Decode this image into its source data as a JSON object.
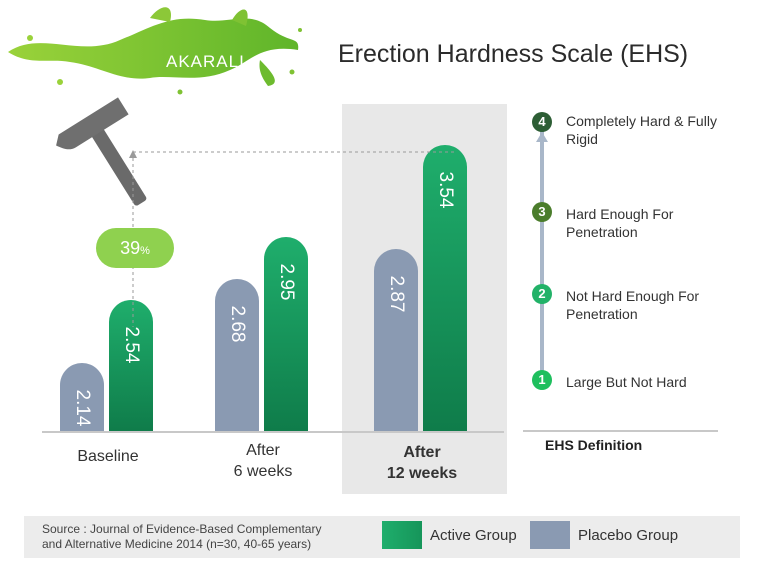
{
  "header": {
    "brand": "AKARALI",
    "title": "Erection Hardness Scale (EHS)"
  },
  "chart_data": {
    "type": "bar",
    "title": "Erection Hardness Scale (EHS)",
    "categories": [
      {
        "line1": "Baseline",
        "line2": ""
      },
      {
        "line1": "After",
        "line2": "6 weeks"
      },
      {
        "line1": "After",
        "line2": "12 weeks"
      }
    ],
    "series": [
      {
        "name": "Placebo Group",
        "values": [
          2.14,
          2.68,
          2.87
        ],
        "labels": [
          "2.14",
          "2.68",
          "2.87"
        ]
      },
      {
        "name": "Active Group",
        "values": [
          2.54,
          2.95,
          3.54
        ],
        "labels": [
          "2.54",
          "2.95",
          "3.54"
        ]
      }
    ],
    "ylim": [
      1.7,
      3.7
    ],
    "highlighted_category": "After 12 weeks",
    "annotation": {
      "value": "39",
      "unit": "%"
    }
  },
  "ehs_scale": {
    "title": "EHS Definition",
    "levels": [
      {
        "num": "4",
        "text": "Completely Hard & Fully Rigid",
        "color": "#2d5e35"
      },
      {
        "num": "3",
        "text": "Hard Enough For Penetration",
        "color": "#4b7d2c"
      },
      {
        "num": "2",
        "text": "Not Hard Enough For Penetration",
        "color": "#22b268"
      },
      {
        "num": "1",
        "text": "Large But Not Hard",
        "color": "#1fbf5e"
      }
    ]
  },
  "legend": {
    "active": {
      "label": "Active Group",
      "color": "#16955a"
    },
    "placebo": {
      "label": "Placebo Group",
      "color": "#8a9ab2"
    }
  },
  "footer": {
    "source_line1": "Source : Journal of Evidence-Based Complementary",
    "source_line2": "and Alternative Medicine 2014 (n=30, 40-65 years)"
  }
}
